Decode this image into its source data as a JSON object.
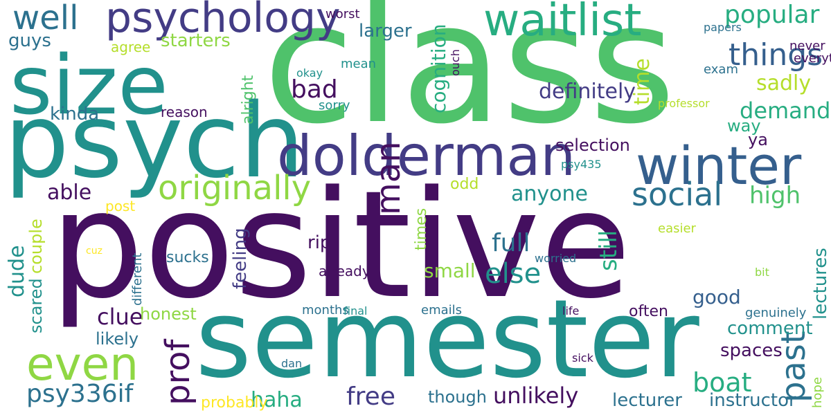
{
  "palette": {
    "deep_purple": "#440f5f",
    "indigo": "#433c85",
    "slate_blue": "#355f8d",
    "teal_blue": "#2c718e",
    "teal": "#21918c",
    "sea_green": "#27ad81",
    "green": "#4fc26b",
    "lime": "#8fd744",
    "yellow_green": "#b5de2b",
    "yellow": "#fde725"
  },
  "words": [
    {
      "text": "class"
    },
    {
      "text": "positive"
    },
    {
      "text": "semester"
    },
    {
      "text": "psych"
    },
    {
      "text": "size"
    },
    {
      "text": "dolderman"
    },
    {
      "text": "winter"
    },
    {
      "text": "waitlist"
    },
    {
      "text": "psychology"
    },
    {
      "text": "originally"
    },
    {
      "text": "even"
    },
    {
      "text": "well"
    },
    {
      "text": "man"
    },
    {
      "text": "prof"
    },
    {
      "text": "past"
    },
    {
      "text": "still"
    },
    {
      "text": "cognition"
    },
    {
      "text": "social"
    },
    {
      "text": "bad"
    },
    {
      "text": "things"
    },
    {
      "text": "popular"
    },
    {
      "text": "else"
    },
    {
      "text": "boat"
    },
    {
      "text": "psy336if"
    },
    {
      "text": "unlikely"
    },
    {
      "text": "free"
    },
    {
      "text": "full"
    },
    {
      "text": "demand"
    },
    {
      "text": "high"
    },
    {
      "text": "sadly"
    },
    {
      "text": "able"
    },
    {
      "text": "anyone"
    },
    {
      "text": "clue"
    },
    {
      "text": "haha"
    },
    {
      "text": "rip"
    },
    {
      "text": "small"
    },
    {
      "text": "likely"
    },
    {
      "text": "guys"
    },
    {
      "text": "starters"
    },
    {
      "text": "kinda"
    },
    {
      "text": "larger"
    },
    {
      "text": "definitely"
    },
    {
      "text": "selection"
    },
    {
      "text": "way"
    },
    {
      "text": "ya"
    },
    {
      "text": "good"
    },
    {
      "text": "spaces"
    },
    {
      "text": "comment"
    },
    {
      "text": "instructor"
    },
    {
      "text": "lecturer"
    },
    {
      "text": "honest"
    },
    {
      "text": "odd"
    },
    {
      "text": "agree"
    },
    {
      "text": "post"
    },
    {
      "text": "reason"
    },
    {
      "text": "probably"
    },
    {
      "text": "though"
    },
    {
      "text": "sucks"
    },
    {
      "text": "already"
    },
    {
      "text": "often"
    },
    {
      "text": "time"
    },
    {
      "text": "dude"
    },
    {
      "text": "feeling"
    },
    {
      "text": "lectures"
    },
    {
      "text": "couple"
    },
    {
      "text": "scared"
    },
    {
      "text": "alright"
    },
    {
      "text": "times"
    },
    {
      "text": "different"
    },
    {
      "text": "ouch"
    },
    {
      "text": "hope"
    },
    {
      "text": "sorry"
    },
    {
      "text": "mean"
    },
    {
      "text": "okay"
    },
    {
      "text": "worst"
    },
    {
      "text": "papers"
    },
    {
      "text": "never"
    },
    {
      "text": "everything"
    },
    {
      "text": "exam"
    },
    {
      "text": "professor"
    },
    {
      "text": "psy435"
    },
    {
      "text": "worried"
    },
    {
      "text": "months"
    },
    {
      "text": "final"
    },
    {
      "text": "emails"
    },
    {
      "text": "life"
    },
    {
      "text": "genuinely"
    },
    {
      "text": "bit"
    },
    {
      "text": "easier"
    },
    {
      "text": "dan"
    },
    {
      "text": "sick"
    },
    {
      "text": "cuz"
    }
  ]
}
